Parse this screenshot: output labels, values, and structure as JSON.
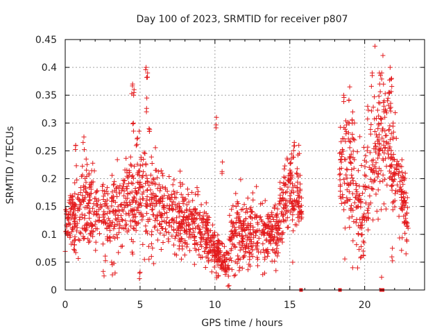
{
  "chart_data": {
    "type": "scatter",
    "title": "Day 100 of 2023, SRMTID for receiver p807",
    "xlabel": "GPS time / hours",
    "ylabel": "SRMTID / TECUs",
    "xlim": [
      0,
      24
    ],
    "ylim": [
      0,
      0.45
    ],
    "x_ticks": [
      0,
      5,
      10,
      15,
      20
    ],
    "y_ticks": [
      0,
      0.05,
      0.1,
      0.15,
      0.2,
      0.25,
      0.3,
      0.35,
      0.4,
      0.45
    ],
    "x_tick_labels": [
      "0",
      "5",
      "10",
      "15",
      "20"
    ],
    "y_tick_labels": [
      "0",
      "0.05",
      "0.1",
      "0.15",
      "0.2",
      "0.25",
      "0.3",
      "0.35",
      "0.4",
      "0.45"
    ],
    "grid": true,
    "legend": "none",
    "series": [
      {
        "name": "SRMTID",
        "marker": "plus",
        "color": "#e31a1c",
        "coverage_segments": [
          [
            0.0,
            15.8
          ],
          [
            18.3,
            22.9
          ]
        ],
        "envelope": [
          {
            "t": 0.0,
            "mean": 0.12,
            "spread": 0.03
          },
          {
            "t": 0.5,
            "mean": 0.13,
            "spread": 0.04
          },
          {
            "t": 1.0,
            "mean": 0.15,
            "spread": 0.05
          },
          {
            "t": 2.0,
            "mean": 0.15,
            "spread": 0.05
          },
          {
            "t": 3.0,
            "mean": 0.13,
            "spread": 0.05
          },
          {
            "t": 4.0,
            "mean": 0.16,
            "spread": 0.05
          },
          {
            "t": 5.0,
            "mean": 0.17,
            "spread": 0.06
          },
          {
            "t": 6.0,
            "mean": 0.15,
            "spread": 0.05
          },
          {
            "t": 7.0,
            "mean": 0.13,
            "spread": 0.04
          },
          {
            "t": 8.0,
            "mean": 0.13,
            "spread": 0.04
          },
          {
            "t": 9.0,
            "mean": 0.11,
            "spread": 0.04
          },
          {
            "t": 10.0,
            "mean": 0.075,
            "spread": 0.025
          },
          {
            "t": 10.8,
            "mean": 0.045,
            "spread": 0.02
          },
          {
            "t": 11.2,
            "mean": 0.12,
            "spread": 0.05
          },
          {
            "t": 12.0,
            "mean": 0.1,
            "spread": 0.04
          },
          {
            "t": 13.0,
            "mean": 0.1,
            "spread": 0.04
          },
          {
            "t": 14.0,
            "mean": 0.1,
            "spread": 0.03
          },
          {
            "t": 15.0,
            "mean": 0.19,
            "spread": 0.05
          },
          {
            "t": 15.8,
            "mean": 0.14,
            "spread": 0.03
          },
          {
            "t": 18.3,
            "mean": 0.2,
            "spread": 0.06
          },
          {
            "t": 19.0,
            "mean": 0.23,
            "spread": 0.08
          },
          {
            "t": 19.8,
            "mean": 0.13,
            "spread": 0.06
          },
          {
            "t": 20.5,
            "mean": 0.22,
            "spread": 0.08
          },
          {
            "t": 21.5,
            "mean": 0.28,
            "spread": 0.08
          },
          {
            "t": 22.2,
            "mean": 0.2,
            "spread": 0.05
          },
          {
            "t": 22.9,
            "mean": 0.13,
            "spread": 0.03
          }
        ],
        "spikes": [
          {
            "x": 4.5,
            "y": 0.37
          },
          {
            "x": 4.6,
            "y": 0.36
          },
          {
            "x": 4.55,
            "y": 0.3
          },
          {
            "x": 5.4,
            "y": 0.4
          },
          {
            "x": 5.5,
            "y": 0.39
          },
          {
            "x": 5.45,
            "y": 0.345
          },
          {
            "x": 5.6,
            "y": 0.29
          },
          {
            "x": 1.25,
            "y": 0.275
          },
          {
            "x": 0.7,
            "y": 0.26
          },
          {
            "x": 10.1,
            "y": 0.31
          },
          {
            "x": 10.5,
            "y": 0.23
          },
          {
            "x": 5.0,
            "y": 0.032
          },
          {
            "x": 3.1,
            "y": 0.05
          },
          {
            "x": 10.9,
            "y": 0.025
          },
          {
            "x": 19.0,
            "y": 0.365
          },
          {
            "x": 18.6,
            "y": 0.35
          },
          {
            "x": 20.5,
            "y": 0.39
          },
          {
            "x": 21.7,
            "y": 0.4
          },
          {
            "x": 21.8,
            "y": 0.38
          },
          {
            "x": 21.0,
            "y": 0.37
          },
          {
            "x": 21.6,
            "y": 0.355
          },
          {
            "x": 21.3,
            "y": 0.34
          },
          {
            "x": 20.2,
            "y": 0.33
          },
          {
            "x": 19.2,
            "y": 0.32
          },
          {
            "x": 21.9,
            "y": 0.3
          },
          {
            "x": 19.9,
            "y": 0.07
          },
          {
            "x": 21.85,
            "y": 0.075
          },
          {
            "x": 22.8,
            "y": 0.09
          },
          {
            "x": 15.3,
            "y": 0.265
          },
          {
            "x": 15.6,
            "y": 0.26
          }
        ],
        "zero_points": [
          {
            "x": 15.75,
            "y": 0
          },
          {
            "x": 18.35,
            "y": 0
          },
          {
            "x": 21.1,
            "y": 0
          },
          {
            "x": 21.2,
            "y": 0
          }
        ]
      }
    ]
  }
}
